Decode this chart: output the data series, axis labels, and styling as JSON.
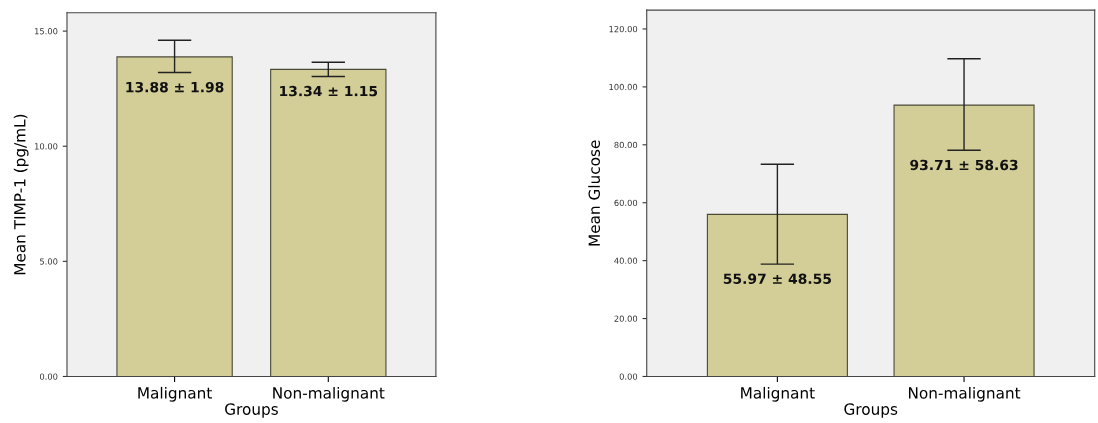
{
  "chart_data": [
    {
      "type": "bar",
      "xlabel": "Groups",
      "ylabel": "Mean TIMP-1 (pg/mL)",
      "categories": [
        "Malignant",
        "Non-malignant"
      ],
      "values": [
        13.88,
        13.34
      ],
      "color": "#d3cd97",
      "errors": [
        [
          13.2,
          14.6
        ],
        [
          13.03,
          13.65
        ]
      ],
      "value_labels": [
        "13.88 ± 1.98",
        "13.34 ± 1.15"
      ],
      "ylim": [
        0,
        15.8
      ],
      "yticks": [
        {
          "value": 0,
          "label": "0.00"
        },
        {
          "value": 5,
          "label": "5.00"
        },
        {
          "value": 10,
          "label": "10.00"
        },
        {
          "value": 15,
          "label": "15.00"
        }
      ],
      "grid": false
    },
    {
      "type": "bar",
      "xlabel": "Groups",
      "ylabel": "Mean Glucose",
      "categories": [
        "Malignant",
        "Non-malignant"
      ],
      "values": [
        55.97,
        93.71
      ],
      "color": "#d3cd97",
      "errors": [
        [
          38.8,
          73.3
        ],
        [
          78.1,
          109.7
        ]
      ],
      "value_labels": [
        "55.97 ± 48.55",
        "93.71 ± 58.63"
      ],
      "ylim": [
        0,
        126.5
      ],
      "yticks": [
        {
          "value": 0,
          "label": "0.00"
        },
        {
          "value": 20,
          "label": "20.00"
        },
        {
          "value": 40,
          "label": "40.00"
        },
        {
          "value": 60,
          "label": "60.00"
        },
        {
          "value": 80,
          "label": "80.00"
        },
        {
          "value": 100,
          "label": "100.00"
        },
        {
          "value": 120,
          "label": "120.00"
        }
      ],
      "grid": false
    }
  ]
}
